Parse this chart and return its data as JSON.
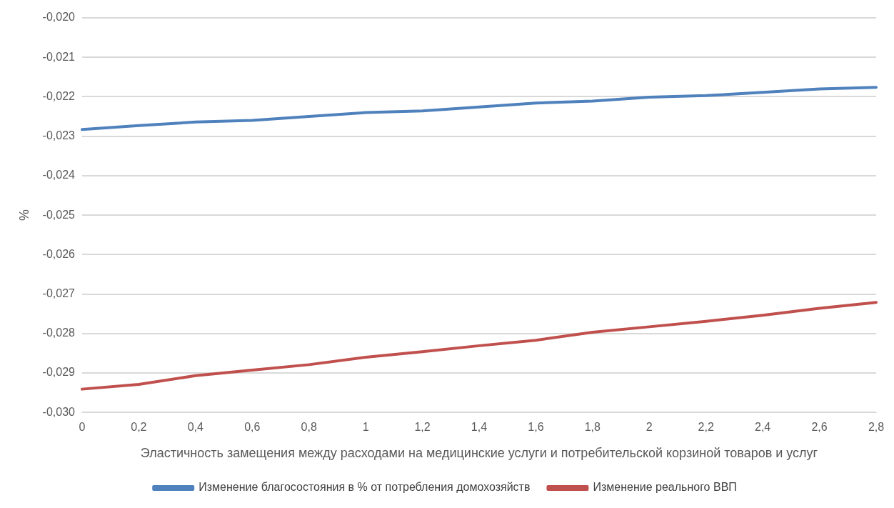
{
  "chart_data": {
    "type": "line",
    "xlabel": "Эластичность замещения между расходами на медицинские услуги и потребительской корзиной товаров и услуг",
    "ylabel": "%",
    "categories": [
      "0",
      "0,2",
      "0,4",
      "0,6",
      "0,8",
      "1",
      "1,2",
      "1,4",
      "1,6",
      "1,8",
      "2",
      "2,2",
      "2,4",
      "2,6",
      "2,8"
    ],
    "series": [
      {
        "name": "Изменение благосостояния в % от потребления домохозяйств",
        "color": "#4f81bd",
        "values": [
          -0.02283,
          -0.02273,
          -0.02264,
          -0.0226,
          -0.0225,
          -0.0224,
          -0.02236,
          -0.02226,
          -0.02216,
          -0.02211,
          -0.02201,
          -0.02197,
          -0.02189,
          -0.0218,
          -0.02176
        ]
      },
      {
        "name": "Изменение реального ВВП",
        "color": "#c0504d",
        "values": [
          -0.02941,
          -0.02929,
          -0.02907,
          -0.02893,
          -0.02879,
          -0.0286,
          -0.02846,
          -0.02831,
          -0.02817,
          -0.02797,
          -0.02783,
          -0.02769,
          -0.02754,
          -0.02736,
          -0.02721
        ]
      }
    ],
    "ylim": [
      -0.03,
      -0.02
    ],
    "yticks": [
      {
        "value": -0.03,
        "label": "-0,030"
      },
      {
        "value": -0.029,
        "label": "-0,029"
      },
      {
        "value": -0.028,
        "label": "-0,028"
      },
      {
        "value": -0.027,
        "label": "-0,027"
      },
      {
        "value": -0.026,
        "label": "-0,026"
      },
      {
        "value": -0.025,
        "label": "-0,025"
      },
      {
        "value": -0.024,
        "label": "-0,024"
      },
      {
        "value": -0.023,
        "label": "-0,023"
      },
      {
        "value": -0.022,
        "label": "-0,022"
      },
      {
        "value": -0.021,
        "label": "-0,021"
      },
      {
        "value": -0.02,
        "label": "-0,020"
      }
    ],
    "grid": "y",
    "legend": "bottom",
    "marker": "none",
    "line_style": "solid"
  }
}
